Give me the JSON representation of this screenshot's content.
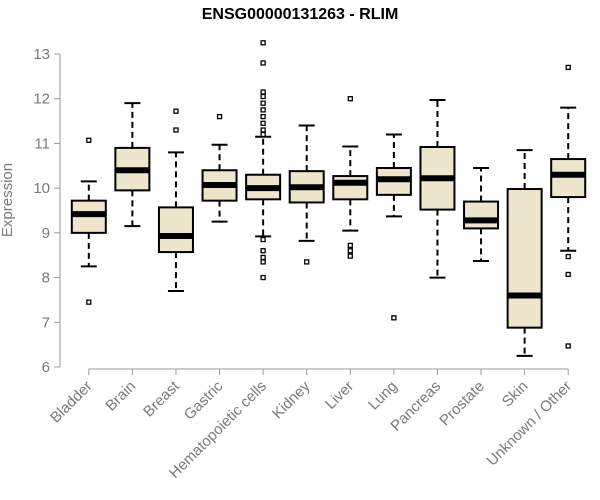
{
  "chart_data": {
    "type": "box",
    "title": "ENSG00000131263 - RLIM",
    "xlabel": "",
    "ylabel": "Expression",
    "ylim": [
      6,
      13
    ],
    "yticks": [
      6,
      7,
      8,
      9,
      10,
      11,
      12,
      13
    ],
    "grid": false,
    "legend": "none",
    "box_fill": "#ede6cc",
    "categories": [
      "Bladder",
      "Brain",
      "Breast",
      "Gastric",
      "Hematopoietic cells",
      "Kidney",
      "Liver",
      "Lung",
      "Pancreas",
      "Prostate",
      "Skin",
      "Unknown / Other"
    ],
    "boxes": [
      {
        "min": 8.25,
        "q1": 9.0,
        "median": 9.42,
        "q3": 9.72,
        "max": 10.15,
        "outliers": [
          7.45,
          11.07
        ]
      },
      {
        "min": 9.15,
        "q1": 9.95,
        "median": 10.4,
        "q3": 10.9,
        "max": 11.9,
        "outliers": []
      },
      {
        "min": 7.7,
        "q1": 8.57,
        "median": 8.93,
        "q3": 9.57,
        "max": 10.8,
        "outliers": [
          11.3,
          11.72
        ]
      },
      {
        "min": 9.25,
        "q1": 9.72,
        "median": 10.07,
        "q3": 10.4,
        "max": 10.97,
        "outliers": [
          11.6
        ]
      },
      {
        "min": 8.92,
        "q1": 9.75,
        "median": 10.0,
        "q3": 10.3,
        "max": 11.15,
        "outliers": [
          8.0,
          8.35,
          8.45,
          8.6,
          8.85,
          11.2,
          11.3,
          11.45,
          11.6,
          11.75,
          11.9,
          12.05,
          12.15,
          12.8,
          13.25
        ]
      },
      {
        "min": 8.82,
        "q1": 9.68,
        "median": 10.02,
        "q3": 10.38,
        "max": 11.4,
        "outliers": [
          8.35
        ]
      },
      {
        "min": 9.05,
        "q1": 9.75,
        "median": 10.12,
        "q3": 10.27,
        "max": 10.93,
        "outliers": [
          8.48,
          8.6,
          8.72,
          12.0
        ]
      },
      {
        "min": 9.37,
        "q1": 9.85,
        "median": 10.2,
        "q3": 10.45,
        "max": 11.2,
        "outliers": [
          7.1
        ]
      },
      {
        "min": 8.0,
        "q1": 9.52,
        "median": 10.22,
        "q3": 10.92,
        "max": 11.97,
        "outliers": []
      },
      {
        "min": 8.37,
        "q1": 9.1,
        "median": 9.28,
        "q3": 9.7,
        "max": 10.45,
        "outliers": []
      },
      {
        "min": 6.25,
        "q1": 6.88,
        "median": 7.6,
        "q3": 9.98,
        "max": 10.85,
        "outliers": []
      },
      {
        "min": 8.6,
        "q1": 9.8,
        "median": 10.3,
        "q3": 10.65,
        "max": 11.8,
        "outliers": [
          6.47,
          8.07,
          8.47,
          12.7
        ]
      }
    ]
  }
}
